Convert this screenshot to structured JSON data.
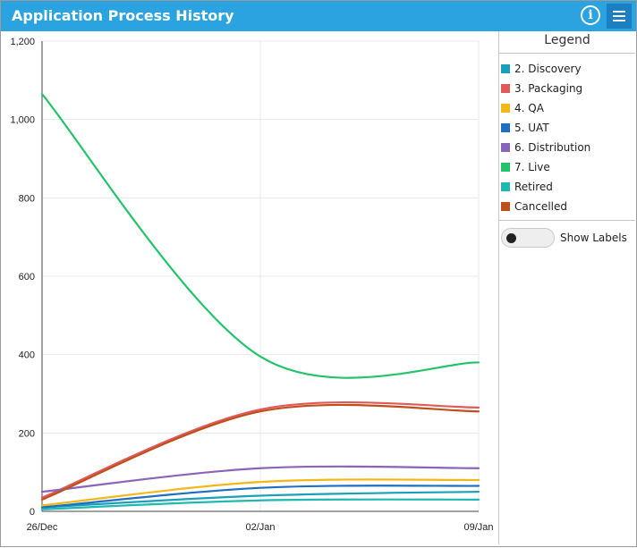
{
  "window": {
    "title": "Application Process History"
  },
  "toolbar": {
    "info_icon": "info-icon",
    "menu_icon": "hamburger-menu-icon",
    "info_glyph": "i"
  },
  "legend": {
    "title": "Legend",
    "show_labels": "Show Labels",
    "show_labels_on": false
  },
  "chart_data": {
    "type": "line",
    "title": "Application Process History",
    "xlabel": "",
    "ylabel": "",
    "x": [
      "26/Dec",
      "02/Jan",
      "09/Jan"
    ],
    "ylim": [
      0,
      1200
    ],
    "yticks": [
      0,
      200,
      400,
      600,
      800,
      1000,
      1200
    ],
    "ytick_labels": [
      "0",
      "200",
      "400",
      "600",
      "800",
      "1,000",
      "1,200"
    ],
    "grid": true,
    "legend_position": "right",
    "series": [
      {
        "name": "2. Discovery",
        "color": "#1aa0b8",
        "values": [
          10,
          40,
          50
        ]
      },
      {
        "name": "3. Packaging",
        "color": "#e05a5a",
        "values": [
          35,
          260,
          265
        ]
      },
      {
        "name": "4. QA",
        "color": "#f2b81a",
        "values": [
          15,
          75,
          80
        ]
      },
      {
        "name": "5. UAT",
        "color": "#1e6fc2",
        "values": [
          10,
          60,
          65
        ]
      },
      {
        "name": "6. Distribution",
        "color": "#8a64b8",
        "values": [
          50,
          110,
          110
        ]
      },
      {
        "name": "7. Live",
        "color": "#22c46a",
        "values": [
          1065,
          395,
          380
        ]
      },
      {
        "name": "Retired",
        "color": "#20b8b0",
        "values": [
          5,
          28,
          30
        ]
      },
      {
        "name": "Cancelled",
        "color": "#c0501a",
        "values": [
          30,
          255,
          255
        ]
      }
    ]
  }
}
